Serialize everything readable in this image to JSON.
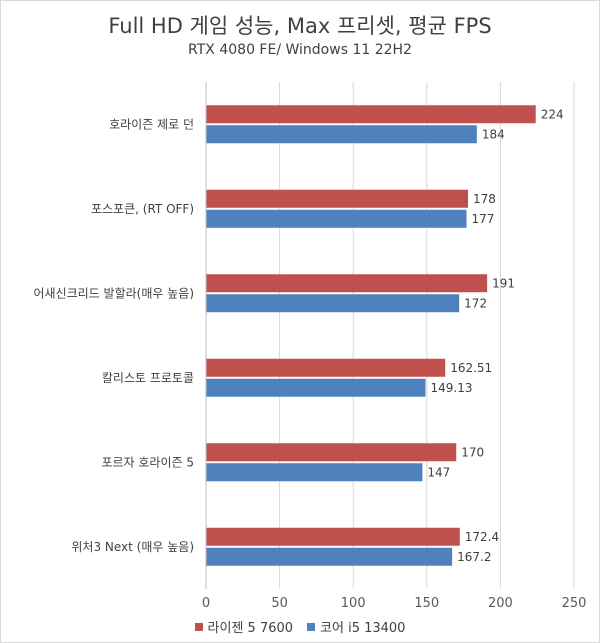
{
  "chart_data": {
    "type": "bar",
    "orientation": "horizontal",
    "title": "Full HD 게임 성능, Max 프리셋, 평균 FPS",
    "subtitle": "RTX 4080 FE/ Windows 11 22H2",
    "categories": [
      "호라이즌 제로 던",
      "포스포큰, (RT OFF)",
      "어새신크리드 발할라(매우 높음)",
      "칼리스토 프로토콜",
      "포르자 호라이즌 5",
      "위처3 Next (매우 높음)"
    ],
    "series": [
      {
        "name": "라이젠 5 7600",
        "color": "#c0504d",
        "values": [
          224,
          178,
          191,
          162.51,
          170,
          172.4
        ],
        "labels": [
          "224",
          "178",
          "191",
          "162.51",
          "170",
          "172.4"
        ]
      },
      {
        "name": "코어 i5 13400",
        "color": "#4f81bd",
        "values": [
          184,
          177,
          172,
          149.13,
          147,
          167.2
        ],
        "labels": [
          "184",
          "177",
          "172",
          "149.13",
          "147",
          "167.2"
        ]
      }
    ],
    "xlim": [
      0,
      250
    ],
    "xticks": [
      "0",
      "50",
      "100",
      "150",
      "200",
      "250"
    ],
    "grid": true,
    "legend_position": "bottom"
  }
}
